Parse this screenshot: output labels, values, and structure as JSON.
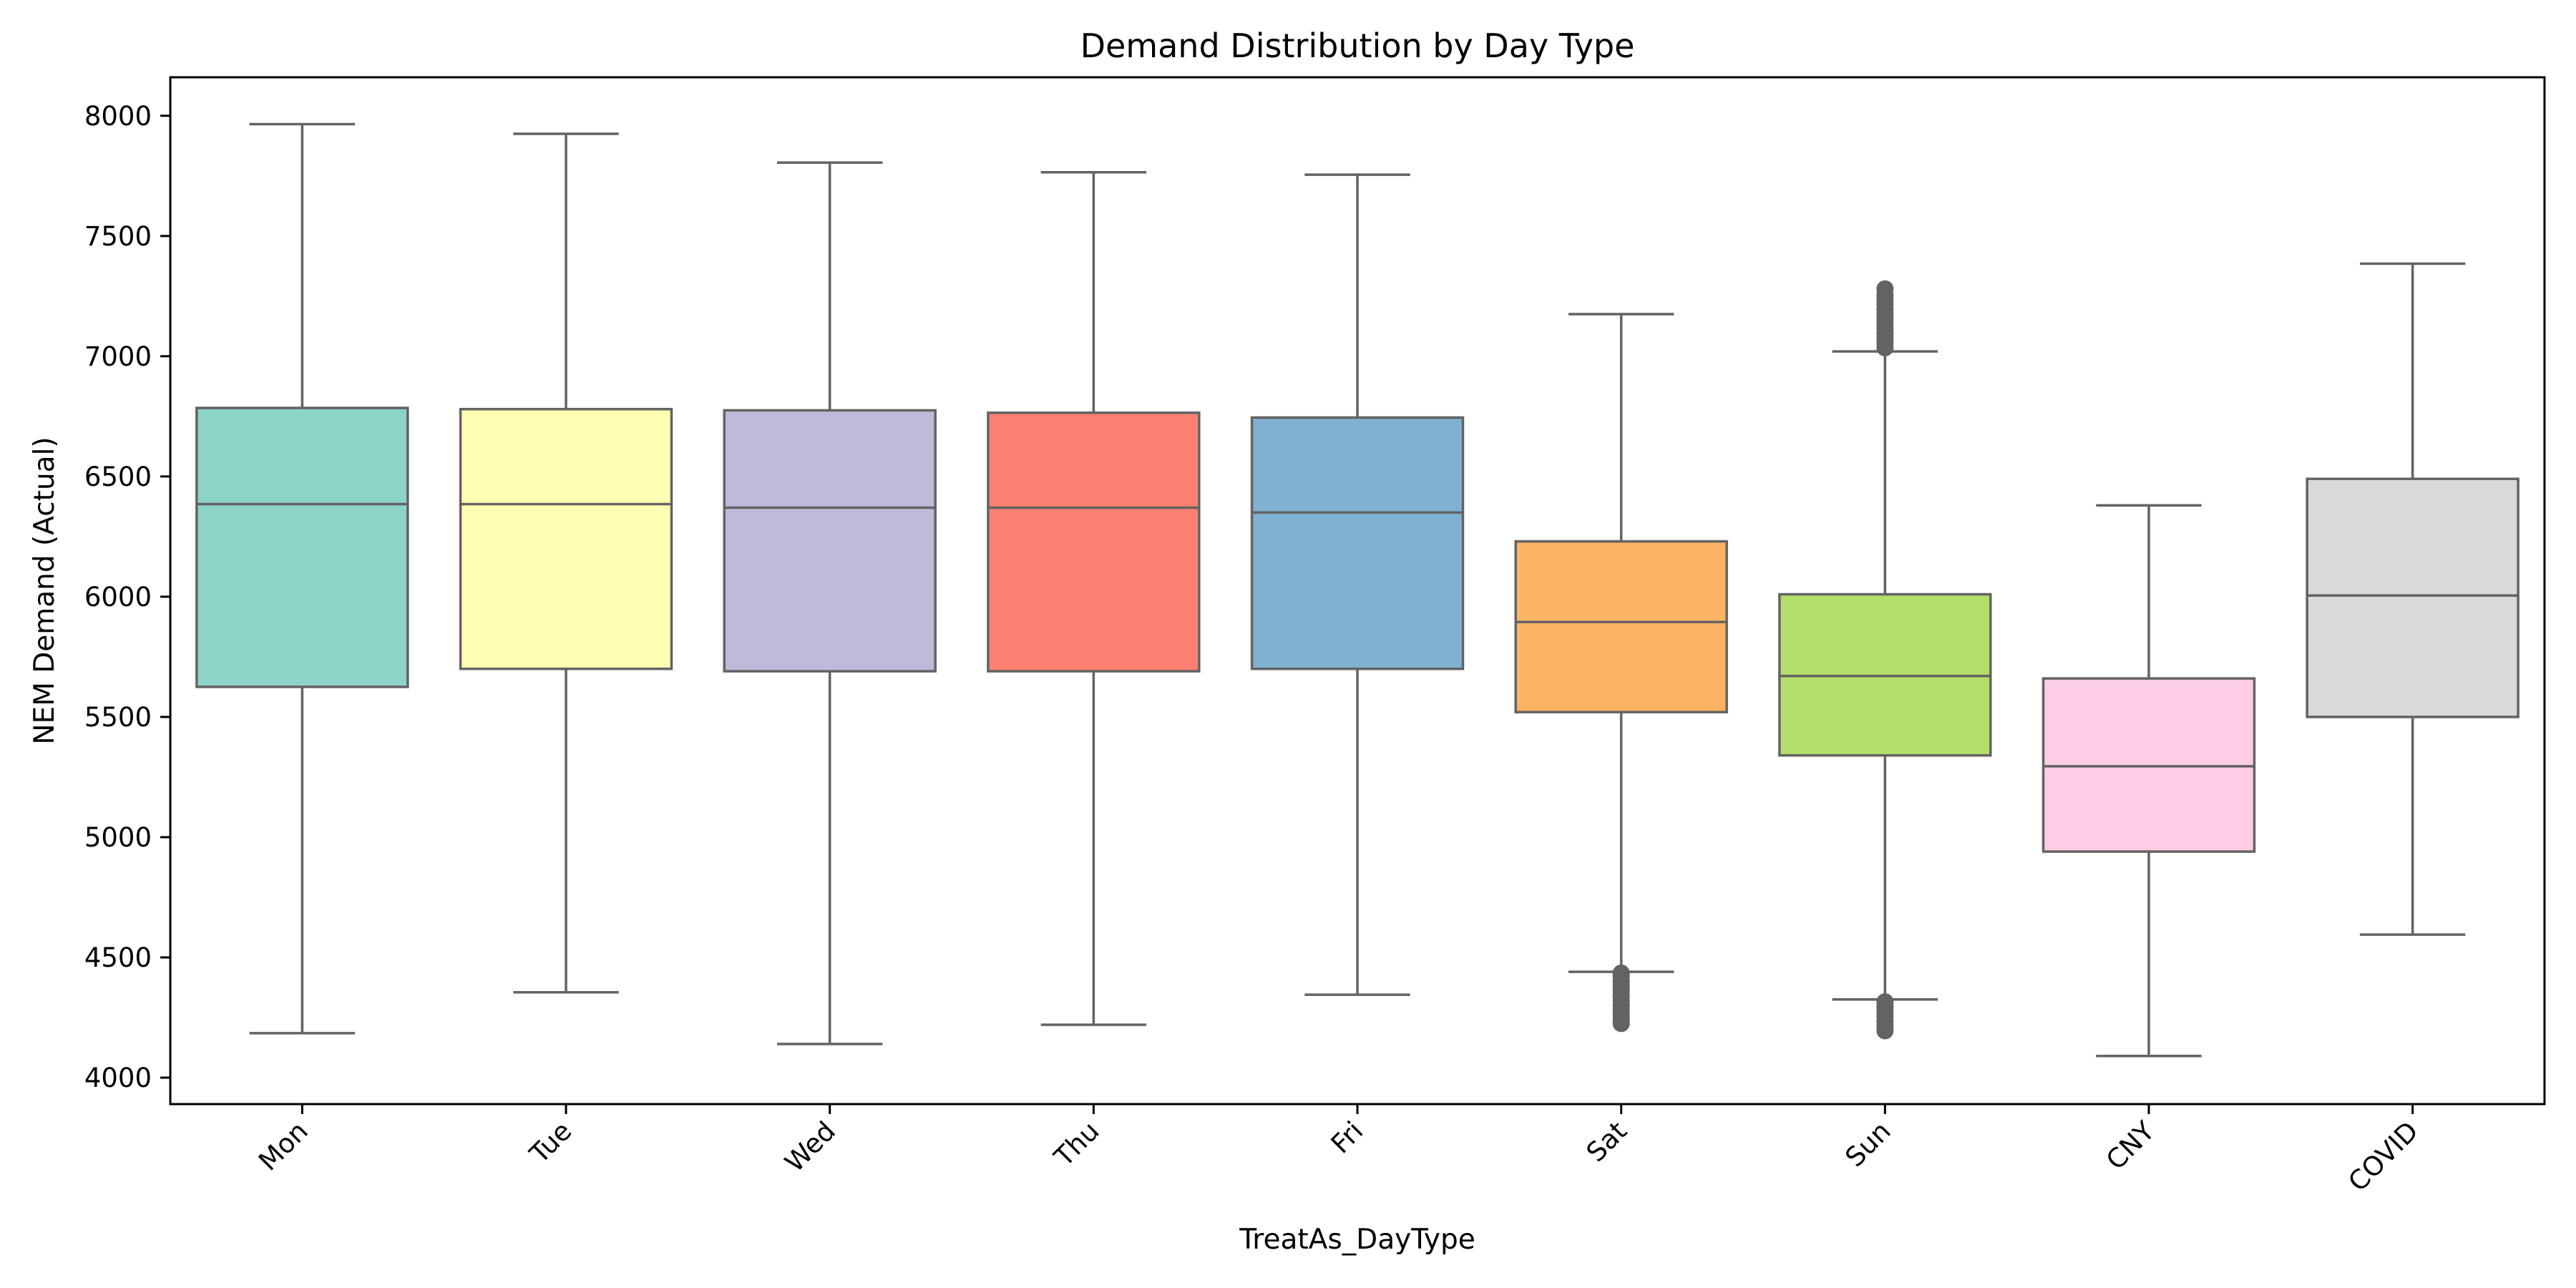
{
  "chart_data": {
    "type": "boxplot",
    "title": "Demand Distribution by Day Type",
    "xlabel": "TreatAs_DayType",
    "ylabel": "NEM Demand (Actual)",
    "ylim": [
      3890,
      8160
    ],
    "yticks": [
      4000,
      4500,
      5000,
      5500,
      6000,
      6500,
      7000,
      7500,
      8000
    ],
    "grid": false,
    "categories": [
      "Mon",
      "Tue",
      "Wed",
      "Thu",
      "Fri",
      "Sat",
      "Sun",
      "CNY",
      "COVID"
    ],
    "series": [
      {
        "category": "Mon",
        "whisker_low": 4185,
        "q1": 5625,
        "median": 6385,
        "q3": 6785,
        "whisker_high": 7965,
        "outliers_low": [],
        "outliers_high": [],
        "color": "#8dd3c7"
      },
      {
        "category": "Tue",
        "whisker_low": 4355,
        "q1": 5700,
        "median": 6385,
        "q3": 6780,
        "whisker_high": 7925,
        "outliers_low": [],
        "outliers_high": [],
        "color": "#ffffb3"
      },
      {
        "category": "Wed",
        "whisker_low": 4140,
        "q1": 5690,
        "median": 6370,
        "q3": 6775,
        "whisker_high": 7805,
        "outliers_low": [],
        "outliers_high": [],
        "color": "#bebada"
      },
      {
        "category": "Thu",
        "whisker_low": 4220,
        "q1": 5690,
        "median": 6370,
        "q3": 6765,
        "whisker_high": 7765,
        "outliers_low": [],
        "outliers_high": [],
        "color": "#fb8072"
      },
      {
        "category": "Fri",
        "whisker_low": 4345,
        "q1": 5700,
        "median": 6350,
        "q3": 6745,
        "whisker_high": 7755,
        "outliers_low": [],
        "outliers_high": [],
        "color": "#80b1d3"
      },
      {
        "category": "Sat",
        "whisker_low": 4440,
        "q1": 5520,
        "median": 5895,
        "q3": 6230,
        "whisker_high": 7175,
        "outliers_low": [
          4225,
          4240,
          4260,
          4280,
          4300,
          4320,
          4340,
          4360,
          4380,
          4400,
          4420,
          4435
        ],
        "outliers_high": [],
        "color": "#fdb462"
      },
      {
        "category": "Sun",
        "whisker_low": 4325,
        "q1": 5340,
        "median": 5670,
        "q3": 6010,
        "whisker_high": 7020,
        "outliers_low": [
          4195,
          4215,
          4235,
          4255,
          4275,
          4295,
          4315
        ],
        "outliers_high": [
          7035,
          7055,
          7075,
          7095,
          7115,
          7135,
          7155,
          7175,
          7195,
          7215,
          7235,
          7255,
          7280
        ],
        "color": "#b3de69"
      },
      {
        "category": "CNY",
        "whisker_low": 4090,
        "q1": 4940,
        "median": 5295,
        "q3": 5660,
        "whisker_high": 6380,
        "outliers_low": [],
        "outliers_high": [],
        "color": "#fccde5"
      },
      {
        "category": "COVID",
        "whisker_low": 4595,
        "q1": 5500,
        "median": 6005,
        "q3": 6490,
        "whisker_high": 7385,
        "outliers_low": [],
        "outliers_high": [],
        "color": "#d9d9d9"
      }
    ]
  }
}
